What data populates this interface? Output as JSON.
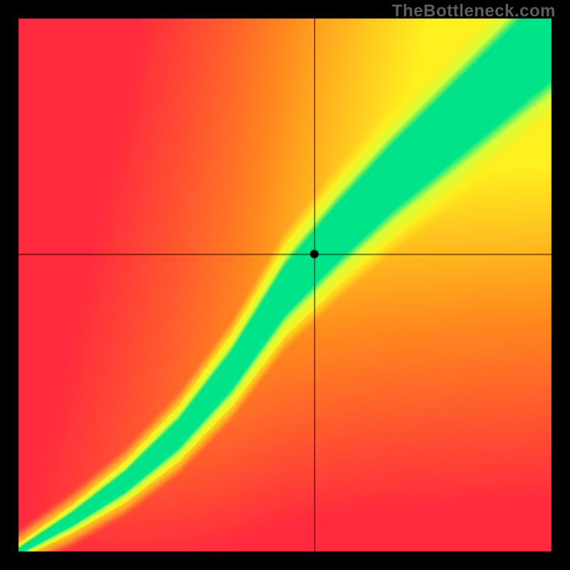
{
  "watermark": {
    "text": "TheBottleneck.com"
  },
  "chart": {
    "type": "heatmap",
    "canvas_size": 800,
    "outer_border": 26,
    "outer_border_color": "#000000",
    "plot_background_render": "gradient-curve",
    "colors": {
      "red": "#ff2a3e",
      "orange": "#ff8a1e",
      "yellow": "#fff01f",
      "yellowgreen": "#d7ff3a",
      "green": "#00e388"
    },
    "optimal_curve": {
      "type": "monotone-spline",
      "points": [
        {
          "xn": 0.0,
          "yn": 0.0
        },
        {
          "xn": 0.1,
          "yn": 0.06
        },
        {
          "xn": 0.2,
          "yn": 0.13
        },
        {
          "xn": 0.3,
          "yn": 0.22
        },
        {
          "xn": 0.4,
          "yn": 0.34
        },
        {
          "xn": 0.5,
          "yn": 0.49
        },
        {
          "xn": 0.6,
          "yn": 0.6
        },
        {
          "xn": 0.7,
          "yn": 0.7
        },
        {
          "xn": 0.8,
          "yn": 0.79
        },
        {
          "xn": 0.9,
          "yn": 0.88
        },
        {
          "xn": 1.0,
          "yn": 0.97
        }
      ],
      "green_halfwidth_at_0": 0.005,
      "green_halfwidth_at_1": 0.085,
      "yellow_extra_halfwidth_at_0": 0.01,
      "yellow_extra_halfwidth_at_1": 0.075
    },
    "crosshair": {
      "xn": 0.555,
      "yn": 0.558,
      "line_color": "#000000",
      "line_width": 1,
      "marker_radius": 6,
      "marker_color": "#000000"
    }
  }
}
